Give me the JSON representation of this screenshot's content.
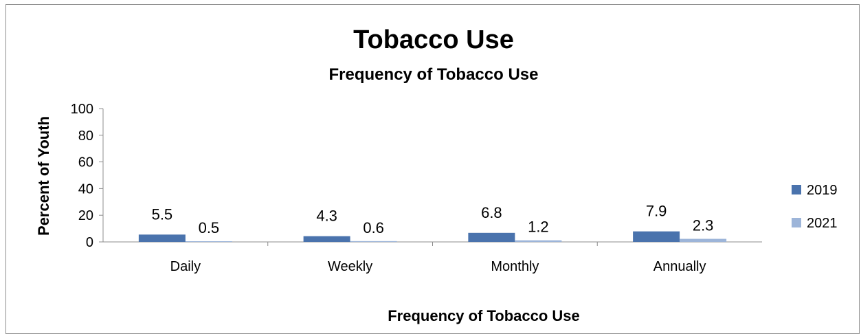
{
  "chart_data": {
    "type": "bar",
    "title": "Tobacco Use",
    "subtitle": "Frequency of Tobacco Use",
    "xlabel": "Frequency of Tobacco Use",
    "ylabel": "Percent of Youth",
    "categories": [
      "Daily",
      "Weekly",
      "Monthly",
      "Annually"
    ],
    "series": [
      {
        "name": "2019",
        "values": [
          5.5,
          4.3,
          6.8,
          7.9
        ],
        "color": "#4a73ad"
      },
      {
        "name": "2021",
        "values": [
          0.5,
          0.6,
          1.2,
          2.3
        ],
        "color": "#9db5d9"
      }
    ],
    "ylim": [
      0,
      100
    ],
    "yticks": [
      0,
      20,
      40,
      60,
      80,
      100
    ],
    "grid": false,
    "legend": "right"
  }
}
